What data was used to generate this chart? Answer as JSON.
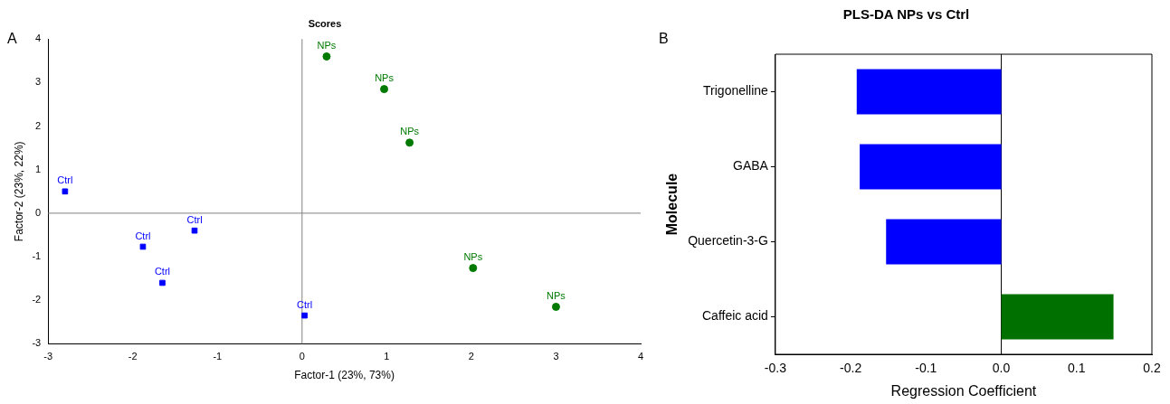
{
  "chart_data": [
    {
      "type": "scatter",
      "title": "Scores",
      "xlabel": "Factor-1 (23%, 73%)",
      "ylabel": "Factor-2 (23%, 22%)",
      "annotations": [
        "A"
      ],
      "xlim": [
        -3,
        4
      ],
      "xticks": [
        -3,
        -2,
        -1,
        0,
        1,
        2,
        3,
        4
      ],
      "ylim": [
        -3,
        4
      ],
      "yticks": [
        -3,
        -2,
        -1,
        0,
        1,
        2,
        3,
        4
      ],
      "grid": false,
      "legend": false,
      "ref_lines": [
        {
          "axis": "x",
          "value": 0,
          "color": "#808080"
        },
        {
          "axis": "y",
          "value": 0,
          "color": "#808080"
        }
      ],
      "series": [
        {
          "name": "Ctrl",
          "color": "#0000ff",
          "marker": "square",
          "x": [
            -2.8,
            -1.88,
            -1.65,
            -1.27,
            0.03
          ],
          "values": [
            0.5,
            -0.77,
            -1.6,
            -0.4,
            -2.35
          ]
        },
        {
          "name": "NPs",
          "color": "#007a00",
          "marker": "circle",
          "x": [
            0.29,
            0.97,
            1.27,
            2.02,
            3.0
          ],
          "values": [
            3.6,
            2.85,
            1.62,
            -1.26,
            -2.15
          ]
        }
      ]
    },
    {
      "type": "bar",
      "orientation": "horizontal",
      "title": "PLS-DA NPs vs Ctrl",
      "xlabel": "Regression Coefficient",
      "ylabel": "Molecule",
      "annotations": [
        "B"
      ],
      "categories": [
        "Trigonelline",
        "GABA",
        "Quercetin-3-G",
        "Caffeic acid"
      ],
      "values": [
        -0.192,
        -0.188,
        -0.153,
        0.149
      ],
      "colors": [
        "#0000ff",
        "#0000ff",
        "#0000ff",
        "#007000"
      ],
      "xlim": [
        -0.3,
        0.2
      ],
      "xticks": [
        -0.3,
        -0.2,
        -0.1,
        {
          "value": 0,
          "label": "0.0"
        },
        0.1,
        {
          "value": 0.2,
          "label": "0.2"
        }
      ],
      "grid": false,
      "legend": false,
      "ref_lines": [
        {
          "axis": "x",
          "value": 0,
          "color": "#000000"
        }
      ]
    }
  ]
}
